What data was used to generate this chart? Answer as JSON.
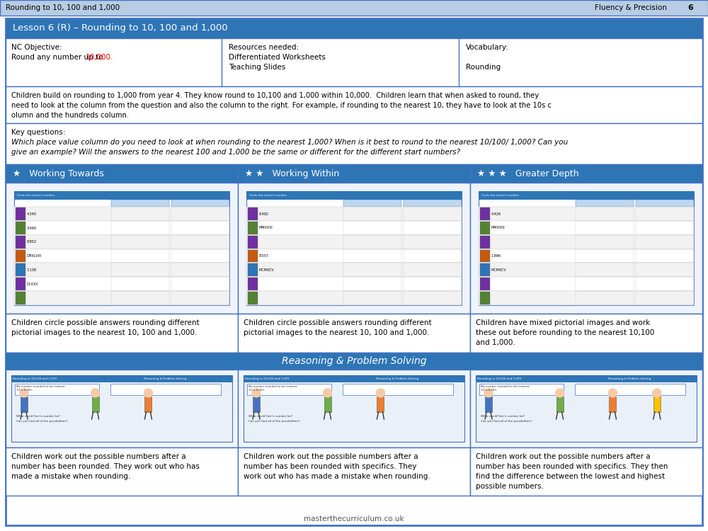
{
  "title_bar": {
    "left_text": "Rounding to 10, 100 and 1,000",
    "right_text": "Fluency & Precision",
    "page_num": "6",
    "bg_color": "#b8cce4",
    "border_color": "#4472c4"
  },
  "lesson_header": {
    "text": "Lesson 6 (R) – Rounding to 10, 100 and 1,000",
    "bg_color": "#2e75b6",
    "text_color": "#ffffff"
  },
  "nc_text1": "NC Objective:",
  "nc_text2": "Round any number up to ",
  "nc_highlight": "10,000.",
  "nc_highlight_color": "#ff0000",
  "resources_lines": [
    "Resources needed:",
    "Differentiated Worksheets",
    "Teaching Slides"
  ],
  "vocab_lines": [
    "Vocabulary:",
    "",
    "Rounding"
  ],
  "desc_lines": [
    "Children build on rounding to 1,000 from year 4. They know round to 10,100 and 1,000 within 10,000.  Children learn that when asked to round, they",
    "need to look at the column from the question and also the column to the right. For example, if rounding to the nearest 10, they have to look at the 10s c",
    "olumn and the hundreds column."
  ],
  "kq_lines": [
    "Key questions:",
    "Which place value column do you need to look at when rounding to the nearest 1,000? When is it best to round to the nearest 10/100/ 1,000? Can you",
    "give an example? Will the answers to the nearest 100 and 1,000 be the same or different for the different start numbers?"
  ],
  "section_headers": [
    {
      "stars": 1,
      "label": "Working Towards"
    },
    {
      "stars": 2,
      "label": "Working Within"
    },
    {
      "stars": 3,
      "label": "Greater Depth"
    }
  ],
  "ws_descriptions": [
    [
      "Children circle possible answers rounding different",
      "pictorial images to the nearest 10, 100 and 1,000."
    ],
    [
      "Children circle possible answers rounding different",
      "pictorial images to the nearest 10, 100 and 1,000."
    ],
    [
      "Children have mixed pictorial images and work",
      "these out before rounding to the nearest 10,100",
      "and 1,000."
    ]
  ],
  "reasoning_header_text": "Reasoning & Problem Solving",
  "rs_descriptions": [
    [
      "Children work out the possible numbers after a",
      "number has been rounded. They work out who has",
      "made a mistake when rounding."
    ],
    [
      "Children work out the possible numbers after a",
      "number has been rounded with specifics. They",
      "work out who has made a mistake when rounding."
    ],
    [
      "Children work out the possible numbers after a",
      "number has been rounded with specifics. They then",
      "find the difference between the lowest and highest",
      "possible numbers."
    ]
  ],
  "footer_text": "masterthecurriculum.co.uk",
  "blue_hdr": "#2e75b6",
  "border_color": "#4472c4",
  "light_blue_bg": "#dce6f1",
  "row_alt1": "#f2f2f2",
  "row_alt2": "#ffffff",
  "col_hdr_bg": "#bdd7ee"
}
